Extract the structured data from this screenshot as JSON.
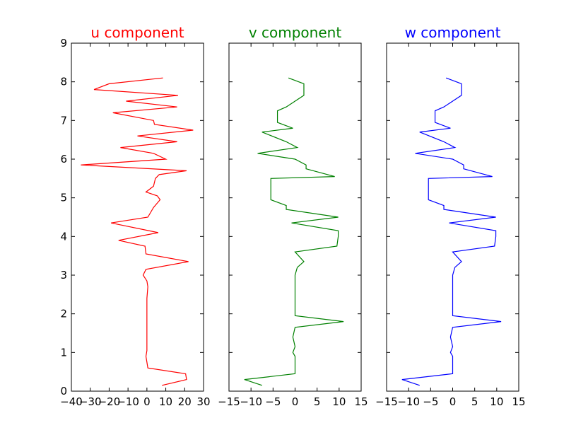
{
  "chart_data": [
    {
      "type": "line",
      "title": "u component",
      "title_color": "#ff0000",
      "line_color": "#ff0000",
      "xlabel": "",
      "ylabel": "",
      "xlim": [
        -40,
        30
      ],
      "ylim": [
        0,
        9
      ],
      "xticks": [
        -40,
        -30,
        -20,
        -10,
        0,
        10,
        20,
        30
      ],
      "xtick_labels": [
        "−40",
        "−30",
        "−20",
        "−10",
        "0",
        "10",
        "20",
        "30"
      ],
      "yticks": [
        0,
        1,
        2,
        3,
        4,
        5,
        6,
        7,
        8,
        9
      ],
      "ytick_labels": [
        "0",
        "1",
        "2",
        "3",
        "4",
        "5",
        "6",
        "7",
        "8",
        "9"
      ],
      "show_yticklabels": true,
      "grid": false,
      "points": [
        [
          8.0,
          0.15
        ],
        [
          21.0,
          0.3
        ],
        [
          20.5,
          0.45
        ],
        [
          0.5,
          0.6
        ],
        [
          0.0,
          0.75
        ],
        [
          -0.5,
          0.9
        ],
        [
          0.0,
          1.05
        ],
        [
          0.0,
          1.2
        ],
        [
          0.0,
          1.5
        ],
        [
          0.0,
          1.8
        ],
        [
          0.0,
          2.1
        ],
        [
          0.0,
          2.4
        ],
        [
          0.5,
          2.7
        ],
        [
          0.0,
          2.85
        ],
        [
          -2.0,
          3.0
        ],
        [
          -0.5,
          3.15
        ],
        [
          22.0,
          3.35
        ],
        [
          -0.5,
          3.55
        ],
        [
          -1.0,
          3.75
        ],
        [
          -15.0,
          3.9
        ],
        [
          6.0,
          4.1
        ],
        [
          -19.0,
          4.35
        ],
        [
          0.5,
          4.5
        ],
        [
          3.5,
          4.75
        ],
        [
          7.0,
          4.95
        ],
        [
          5.5,
          5.05
        ],
        [
          -0.5,
          5.15
        ],
        [
          3.5,
          5.3
        ],
        [
          4.5,
          5.5
        ],
        [
          6.5,
          5.6
        ],
        [
          21.0,
          5.7
        ],
        [
          -35.0,
          5.85
        ],
        [
          10.0,
          6.0
        ],
        [
          3.5,
          6.15
        ],
        [
          -14.0,
          6.3
        ],
        [
          16.0,
          6.45
        ],
        [
          -5.0,
          6.6
        ],
        [
          24.5,
          6.75
        ],
        [
          4.0,
          6.9
        ],
        [
          3.5,
          7.0
        ],
        [
          -18.0,
          7.2
        ],
        [
          16.0,
          7.35
        ],
        [
          -11.0,
          7.5
        ],
        [
          16.5,
          7.65
        ],
        [
          -28.0,
          7.8
        ],
        [
          -20.0,
          7.95
        ],
        [
          8.5,
          8.1
        ]
      ]
    },
    {
      "type": "line",
      "title": "v component",
      "title_color": "#008000",
      "line_color": "#008000",
      "xlabel": "",
      "ylabel": "",
      "xlim": [
        -15,
        15
      ],
      "ylim": [
        0,
        9
      ],
      "xticks": [
        -15,
        -10,
        -5,
        0,
        5,
        10,
        15
      ],
      "xtick_labels": [
        "−15",
        "−10",
        "−5",
        "0",
        "5",
        "10",
        "15"
      ],
      "yticks": [
        0,
        1,
        2,
        3,
        4,
        5,
        6,
        7,
        8,
        9
      ],
      "ytick_labels": [],
      "show_yticklabels": false,
      "grid": false,
      "points": [
        [
          -7.5,
          0.15
        ],
        [
          -11.5,
          0.3
        ],
        [
          0.0,
          0.45
        ],
        [
          0.0,
          0.7
        ],
        [
          0.0,
          0.9
        ],
        [
          -0.5,
          1.0
        ],
        [
          0.0,
          1.15
        ],
        [
          -0.5,
          1.4
        ],
        [
          0.0,
          1.65
        ],
        [
          11.0,
          1.8
        ],
        [
          0.0,
          1.95
        ],
        [
          0.0,
          2.2
        ],
        [
          0.0,
          2.5
        ],
        [
          0.0,
          2.8
        ],
        [
          0.0,
          3.0
        ],
        [
          0.5,
          3.2
        ],
        [
          2.0,
          3.35
        ],
        [
          0.0,
          3.6
        ],
        [
          9.5,
          3.75
        ],
        [
          9.8,
          4.0
        ],
        [
          9.8,
          4.15
        ],
        [
          -0.8,
          4.35
        ],
        [
          9.8,
          4.5
        ],
        [
          -2.0,
          4.7
        ],
        [
          -2.0,
          4.8
        ],
        [
          -5.5,
          4.95
        ],
        [
          -5.5,
          5.1
        ],
        [
          -5.5,
          5.3
        ],
        [
          -5.5,
          5.5
        ],
        [
          9.0,
          5.55
        ],
        [
          2.5,
          5.75
        ],
        [
          2.5,
          5.85
        ],
        [
          0.0,
          6.0
        ],
        [
          -8.5,
          6.15
        ],
        [
          0.5,
          6.3
        ],
        [
          -2.0,
          6.45
        ],
        [
          -7.5,
          6.7
        ],
        [
          -0.5,
          6.8
        ],
        [
          -4.0,
          6.95
        ],
        [
          -4.0,
          7.15
        ],
        [
          -4.0,
          7.25
        ],
        [
          -2.0,
          7.35
        ],
        [
          0.0,
          7.5
        ],
        [
          2.0,
          7.65
        ],
        [
          2.0,
          7.8
        ],
        [
          2.0,
          7.95
        ],
        [
          -1.5,
          8.1
        ]
      ]
    },
    {
      "type": "line",
      "title": "w component",
      "title_color": "#0000ff",
      "line_color": "#0000ff",
      "xlabel": "",
      "ylabel": "",
      "xlim": [
        -15,
        15
      ],
      "ylim": [
        0,
        9
      ],
      "xticks": [
        -15,
        -10,
        -5,
        0,
        5,
        10,
        15
      ],
      "xtick_labels": [
        "−15",
        "−10",
        "−5",
        "0",
        "5",
        "10",
        "15"
      ],
      "yticks": [
        0,
        1,
        2,
        3,
        4,
        5,
        6,
        7,
        8,
        9
      ],
      "ytick_labels": [],
      "show_yticklabels": false,
      "grid": false,
      "points": [
        [
          -7.5,
          0.15
        ],
        [
          -11.5,
          0.3
        ],
        [
          0.0,
          0.45
        ],
        [
          0.0,
          0.7
        ],
        [
          0.0,
          0.9
        ],
        [
          -0.5,
          1.0
        ],
        [
          0.0,
          1.15
        ],
        [
          -0.5,
          1.4
        ],
        [
          0.0,
          1.65
        ],
        [
          11.0,
          1.8
        ],
        [
          0.0,
          1.95
        ],
        [
          0.0,
          2.2
        ],
        [
          0.0,
          2.5
        ],
        [
          0.0,
          2.8
        ],
        [
          0.0,
          3.0
        ],
        [
          0.5,
          3.2
        ],
        [
          2.0,
          3.35
        ],
        [
          0.0,
          3.6
        ],
        [
          9.5,
          3.75
        ],
        [
          9.8,
          4.0
        ],
        [
          9.8,
          4.15
        ],
        [
          -0.8,
          4.35
        ],
        [
          9.8,
          4.5
        ],
        [
          -2.0,
          4.7
        ],
        [
          -2.0,
          4.8
        ],
        [
          -5.5,
          4.95
        ],
        [
          -5.5,
          5.1
        ],
        [
          -5.5,
          5.3
        ],
        [
          -5.5,
          5.5
        ],
        [
          9.0,
          5.55
        ],
        [
          2.5,
          5.75
        ],
        [
          2.5,
          5.85
        ],
        [
          0.0,
          6.0
        ],
        [
          -8.5,
          6.15
        ],
        [
          0.5,
          6.3
        ],
        [
          -2.0,
          6.45
        ],
        [
          -7.5,
          6.7
        ],
        [
          -0.5,
          6.8
        ],
        [
          -4.0,
          6.95
        ],
        [
          -4.0,
          7.15
        ],
        [
          -4.0,
          7.25
        ],
        [
          -2.0,
          7.35
        ],
        [
          0.0,
          7.5
        ],
        [
          2.0,
          7.65
        ],
        [
          2.0,
          7.8
        ],
        [
          2.0,
          7.95
        ],
        [
          -1.5,
          8.1
        ]
      ]
    }
  ]
}
